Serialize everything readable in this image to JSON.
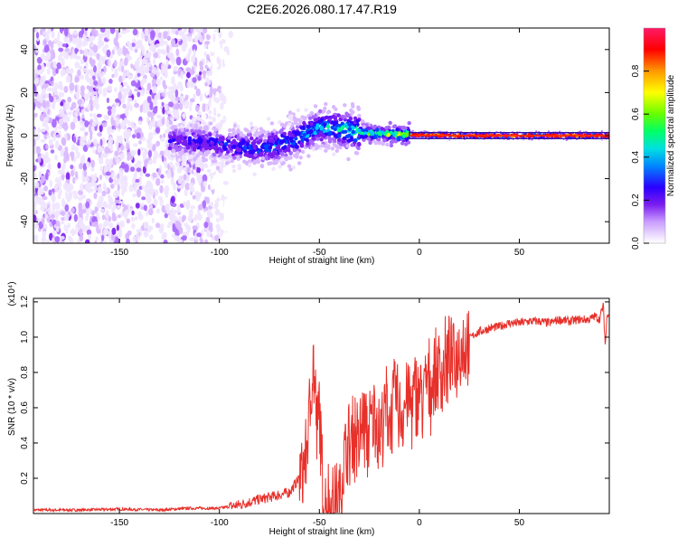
{
  "title": "C2E6.2026.080.17.47.R19",
  "chart_data": [
    {
      "type": "heatmap",
      "xlabel": "Height of straight line (km)",
      "ylabel": "Frequency (Hz)",
      "xlim": [
        -193,
        95
      ],
      "ylim": [
        -50,
        50
      ],
      "xticks": [
        -150,
        -100,
        -50,
        0,
        50
      ],
      "yticks": [
        -40,
        -20,
        0,
        20,
        40
      ],
      "colorbar": {
        "label": "Normalized spectral amplitude",
        "range": [
          0,
          1
        ],
        "ticks": [
          0.0,
          0.2,
          0.4,
          0.6,
          0.8
        ]
      },
      "colorscale": [
        "#ffffff",
        "#f0e4ff",
        "#d9b8ff",
        "#a766ff",
        "#7a1cf0",
        "#2a00ff",
        "#0044ff",
        "#00c8ff",
        "#00ff88",
        "#66ff00",
        "#ffff00",
        "#ff9900",
        "#ff0000",
        "#ff1a66"
      ],
      "features": {
        "noise_band_x": [
          -193,
          -95
        ],
        "signal_band": [
          {
            "x": -125,
            "f": -2,
            "amp": 0.35
          },
          {
            "x": -100,
            "f": -4,
            "amp": 0.4
          },
          {
            "x": -80,
            "f": -6,
            "amp": 0.45
          },
          {
            "x": -65,
            "f": -3,
            "amp": 0.5
          },
          {
            "x": -50,
            "f": 4,
            "amp": 0.55
          },
          {
            "x": -40,
            "f": 3,
            "amp": 0.6
          },
          {
            "x": -25,
            "f": 1,
            "amp": 0.7
          },
          {
            "x": -10,
            "f": 0.5,
            "amp": 0.8
          },
          {
            "x": 20,
            "f": 0,
            "amp": 0.85
          },
          {
            "x": 60,
            "f": 0,
            "amp": 0.85
          },
          {
            "x": 95,
            "f": 0,
            "amp": 0.85
          }
        ]
      }
    },
    {
      "type": "line",
      "xlabel": "Height of straight line (km)",
      "ylabel": "SNR (10 * v/v)",
      "yscale_label": "(x10⁴)",
      "xlim": [
        -193,
        95
      ],
      "ylim": [
        0,
        1.22
      ],
      "xticks": [
        -150,
        -100,
        -50,
        0,
        50
      ],
      "yticks": [
        0.2,
        0.4,
        0.6,
        0.8,
        1.0,
        1.2
      ],
      "color": "#e8302a",
      "series": [
        {
          "x": [
            -193,
            -170,
            -150,
            -130,
            -115,
            -100,
            -90,
            -80,
            -72,
            -65,
            -60,
            -57,
            -55,
            -53,
            -51,
            -50,
            -49,
            -48,
            -46,
            -44,
            -42,
            -40,
            -38,
            -36,
            -34,
            -32,
            -30,
            -28,
            -26,
            -24,
            -22,
            -20,
            -18,
            -16,
            -14,
            -12,
            -10,
            -8,
            -6,
            -4,
            -2,
            0,
            2,
            4,
            6,
            8,
            10,
            12,
            14,
            16,
            18,
            20,
            22,
            24,
            26,
            28,
            30,
            35,
            40,
            45,
            50,
            55,
            60,
            65,
            70,
            75,
            80,
            85,
            88,
            90,
            92,
            93,
            94,
            95
          ],
          "y": [
            0.02,
            0.02,
            0.025,
            0.02,
            0.03,
            0.03,
            0.05,
            0.08,
            0.1,
            0.12,
            0.2,
            0.3,
            0.55,
            0.88,
            0.4,
            0.65,
            0.3,
            0.08,
            0.05,
            0.04,
            0.05,
            0.05,
            0.3,
            0.35,
            0.4,
            0.45,
            0.38,
            0.55,
            0.4,
            0.5,
            0.6,
            0.45,
            0.55,
            0.62,
            0.5,
            0.7,
            0.55,
            0.6,
            0.65,
            0.62,
            0.68,
            0.7,
            0.66,
            0.75,
            0.72,
            0.78,
            0.82,
            0.8,
            0.86,
            0.9,
            0.88,
            0.93,
            0.95,
            0.98,
            1.0,
            1.02,
            1.03,
            1.05,
            1.06,
            1.08,
            1.08,
            1.09,
            1.09,
            1.08,
            1.1,
            1.09,
            1.1,
            1.1,
            1.12,
            1.1,
            1.18,
            0.95,
            1.15,
            1.12
          ]
        }
      ]
    }
  ]
}
